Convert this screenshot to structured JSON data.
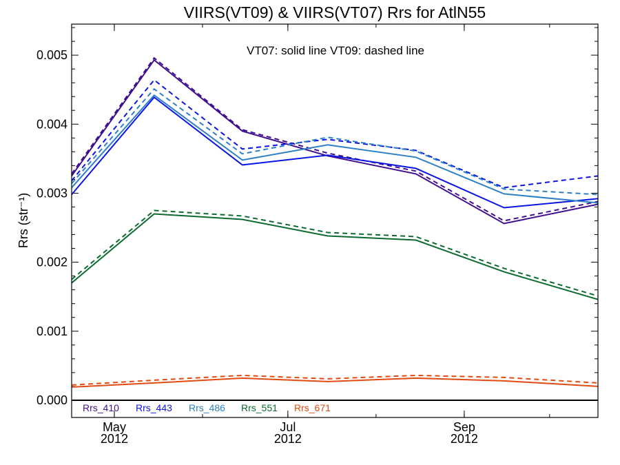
{
  "chart_data": {
    "type": "line",
    "title": "VIIRS(VT09) & VIIRS(VT07)  Rrs for AtlN55",
    "note": "VT07: solid line   VT09: dashed line",
    "ylabel": "Rrs (str⁻¹)",
    "xlabel": "",
    "ylim": [
      -0.00025,
      0.00545
    ],
    "xlim": [
      "2012-04-16",
      "2012-10-18"
    ],
    "yticks": [
      0.0,
      0.001,
      0.002,
      0.003,
      0.004,
      0.005
    ],
    "ytick_labels": [
      "0.000",
      "0.001",
      "0.002",
      "0.003",
      "0.004",
      "0.005"
    ],
    "xticks": [
      {
        "date": "2012-05-01",
        "month": "May",
        "year": "2012"
      },
      {
        "date": "2012-07-01",
        "month": "Jul",
        "year": "2012"
      },
      {
        "date": "2012-09-01",
        "month": "Sep",
        "year": "2012"
      }
    ],
    "x": [
      "2012-04-16",
      "2012-05-15",
      "2012-06-15",
      "2012-07-15",
      "2012-08-15",
      "2012-09-15",
      "2012-10-18"
    ],
    "zero_line": true,
    "series": [
      {
        "name": "Rrs_410",
        "color": "#3f0f8f",
        "style": "solid",
        "values": [
          0.00325,
          0.00493,
          0.0039,
          0.00354,
          0.00328,
          0.00256,
          0.00284
        ]
      },
      {
        "name": "Rrs_410",
        "color": "#3f0f8f",
        "style": "dashed",
        "values": [
          0.00328,
          0.00496,
          0.00392,
          0.00358,
          0.00332,
          0.0026,
          0.00288
        ]
      },
      {
        "name": "Rrs_443",
        "color": "#0a14e6",
        "style": "solid",
        "values": [
          0.00298,
          0.00439,
          0.00341,
          0.00355,
          0.00336,
          0.00279,
          0.00292
        ]
      },
      {
        "name": "Rrs_443",
        "color": "#0a14e6",
        "style": "dashed",
        "values": [
          0.00318,
          0.00464,
          0.00364,
          0.00378,
          0.00362,
          0.00308,
          0.00325
        ]
      },
      {
        "name": "Rrs_486",
        "color": "#2b80c8",
        "style": "solid",
        "values": [
          0.00308,
          0.00442,
          0.00348,
          0.0037,
          0.00352,
          0.00299,
          0.00286
        ]
      },
      {
        "name": "Rrs_486",
        "color": "#2b80c8",
        "style": "dashed",
        "values": [
          0.00314,
          0.00451,
          0.00357,
          0.00381,
          0.00361,
          0.00306,
          0.00298
        ]
      },
      {
        "name": "Rrs_551",
        "color": "#0b6a2f",
        "style": "solid",
        "values": [
          0.0017,
          0.0027,
          0.00262,
          0.00238,
          0.00232,
          0.00186,
          0.00146
        ]
      },
      {
        "name": "Rrs_551",
        "color": "#0b6a2f",
        "style": "dashed",
        "values": [
          0.00175,
          0.00275,
          0.00267,
          0.00243,
          0.00237,
          0.00191,
          0.00151
        ]
      },
      {
        "name": "Rrs_671",
        "color": "#e24a10",
        "style": "solid",
        "values": [
          0.00019,
          0.00025,
          0.00032,
          0.00027,
          0.00032,
          0.00028,
          0.0002
        ]
      },
      {
        "name": "Rrs_671",
        "color": "#e24a10",
        "style": "dashed",
        "values": [
          0.00022,
          0.00029,
          0.00036,
          0.00031,
          0.00036,
          0.00033,
          0.00025
        ]
      }
    ],
    "legend": [
      {
        "label": "Rrs_410",
        "color": "#3f0f8f"
      },
      {
        "label": "Rrs_443",
        "color": "#0a14e6"
      },
      {
        "label": "Rrs_486",
        "color": "#2b80c8"
      },
      {
        "label": "Rrs_551",
        "color": "#0b6a2f"
      },
      {
        "label": "Rrs_671",
        "color": "#e24a10"
      }
    ],
    "legend_position": "bottom-left"
  }
}
